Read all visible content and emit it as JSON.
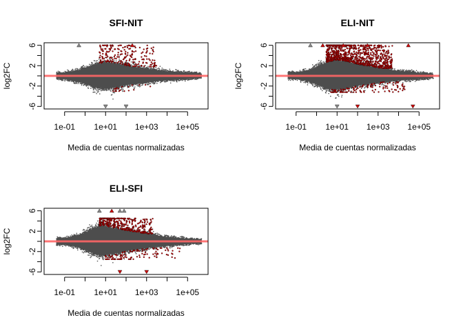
{
  "figure": {
    "colors": {
      "background": "#ffffff",
      "points_nonsignificant": "#4d4d4d",
      "points_significant": "#cc0000",
      "reference_line": "#ff6666",
      "axis": "#000000"
    }
  },
  "chart_data": [
    {
      "type": "scatter",
      "title": "SFI-NIT",
      "xlabel": "Media de cuentas normalizadas",
      "ylabel": "log2FC",
      "x_scale": "log10",
      "xlim": [
        0.01,
        1000000
      ],
      "ylim": [
        -6.5,
        6.5
      ],
      "x_ticks": [
        0.1,
        10,
        1000,
        100000
      ],
      "x_tick_labels": [
        "1e-01",
        "1e+01",
        "1e+03",
        "1e+05"
      ],
      "y_ticks": [
        -6,
        -2,
        2,
        6
      ],
      "y_tick_labels": [
        "-6",
        "-2",
        "2",
        "6"
      ],
      "reference_line_y": 0,
      "grid": false,
      "legend": "none",
      "cloud": {
        "upper_envelope": [
          [
            0.1,
            0.7
          ],
          [
            0.5,
            1.3
          ],
          [
            1,
            1.8
          ],
          [
            3,
            2.6
          ],
          [
            10,
            3.0
          ],
          [
            30,
            2.8
          ],
          [
            100,
            2.3
          ],
          [
            1000,
            1.6
          ],
          [
            10000,
            1.0
          ],
          [
            100000,
            0.7
          ],
          [
            1000000,
            0.4
          ]
        ],
        "lower_envelope": [
          [
            0.1,
            -0.7
          ],
          [
            0.5,
            -1.3
          ],
          [
            1,
            -1.8
          ],
          [
            3,
            -2.6
          ],
          [
            10,
            -2.9
          ],
          [
            30,
            -2.6
          ],
          [
            100,
            -2.1
          ],
          [
            1000,
            -1.5
          ],
          [
            10000,
            -1.0
          ],
          [
            100000,
            -0.7
          ],
          [
            1000000,
            -0.4
          ]
        ]
      },
      "significant_region": {
        "x_range": [
          5,
          3000
        ],
        "y_range": [
          1.8,
          6.0
        ],
        "count": 220
      },
      "significant_region_down": {
        "x_range": [
          20,
          2000
        ],
        "y_range": [
          -3.0,
          -1.5
        ],
        "count": 20
      },
      "outliers_up": [
        {
          "x": 0.5,
          "color": "gray"
        },
        {
          "x": 200,
          "color": "red"
        }
      ],
      "outliers_down": [
        {
          "x": 10,
          "color": "gray"
        },
        {
          "x": 100,
          "color": "gray"
        }
      ]
    },
    {
      "type": "scatter",
      "title": "ELI-NIT",
      "xlabel": "Media de cuentas normalizadas",
      "ylabel": "log2FC",
      "x_scale": "log10",
      "xlim": [
        0.01,
        1000000
      ],
      "ylim": [
        -6.5,
        6.5
      ],
      "x_ticks": [
        0.1,
        10,
        1000,
        100000
      ],
      "x_tick_labels": [
        "1e-01",
        "1e+01",
        "1e+03",
        "1e+05"
      ],
      "y_ticks": [
        -6,
        -2,
        2,
        6
      ],
      "y_tick_labels": [
        "-6",
        "-2",
        "2",
        "6"
      ],
      "reference_line_y": 0,
      "grid": false,
      "legend": "none",
      "cloud": {
        "upper_envelope": [
          [
            0.1,
            0.7
          ],
          [
            0.5,
            1.4
          ],
          [
            1,
            2.0
          ],
          [
            3,
            3.0
          ],
          [
            10,
            3.5
          ],
          [
            30,
            3.2
          ],
          [
            100,
            2.6
          ],
          [
            1000,
            1.8
          ],
          [
            10000,
            1.1
          ],
          [
            100000,
            0.7
          ],
          [
            1000000,
            0.4
          ]
        ],
        "lower_envelope": [
          [
            0.1,
            -0.7
          ],
          [
            0.5,
            -1.3
          ],
          [
            1,
            -1.9
          ],
          [
            3,
            -2.9
          ],
          [
            10,
            -3.1
          ],
          [
            30,
            -2.7
          ],
          [
            100,
            -2.2
          ],
          [
            1000,
            -1.5
          ],
          [
            10000,
            -1.0
          ],
          [
            100000,
            -0.7
          ],
          [
            1000000,
            -0.4
          ]
        ]
      },
      "significant_region": {
        "x_range": [
          3,
          5000
        ],
        "y_range": [
          1.5,
          6.0
        ],
        "count": 900
      },
      "significant_region_down": {
        "x_range": [
          5,
          20000
        ],
        "y_range": [
          -3.2,
          -1.2
        ],
        "count": 120
      },
      "outliers_up": [
        {
          "x": 0.5,
          "color": "gray"
        },
        {
          "x": 2,
          "color": "red"
        },
        {
          "x": 20,
          "color": "red"
        },
        {
          "x": 300,
          "color": "red"
        },
        {
          "x": 30000,
          "color": "red"
        }
      ],
      "outliers_down": [
        {
          "x": 10,
          "color": "gray"
        },
        {
          "x": 100,
          "color": "red"
        },
        {
          "x": 50000,
          "color": "red"
        }
      ]
    },
    {
      "type": "scatter",
      "title": "ELI-SFI",
      "xlabel": "Media de cuentas normalizadas",
      "ylabel": "log2FC",
      "x_scale": "log10",
      "xlim": [
        0.01,
        1000000
      ],
      "ylim": [
        -6.5,
        6.5
      ],
      "x_ticks": [
        0.1,
        10,
        1000,
        100000
      ],
      "x_tick_labels": [
        "1e-01",
        "1e+01",
        "1e+03",
        "1e+05"
      ],
      "y_ticks": [
        -6,
        -2,
        2,
        6
      ],
      "y_tick_labels": [
        "-6",
        "-2",
        "2",
        "6"
      ],
      "reference_line_y": 0,
      "grid": false,
      "legend": "none",
      "cloud": {
        "upper_envelope": [
          [
            0.1,
            0.7
          ],
          [
            0.5,
            1.4
          ],
          [
            1,
            2.0
          ],
          [
            3,
            3.0
          ],
          [
            7,
            3.6
          ],
          [
            15,
            3.2
          ],
          [
            100,
            2.4
          ],
          [
            1000,
            1.7
          ],
          [
            10000,
            1.0
          ],
          [
            100000,
            0.6
          ],
          [
            1000000,
            0.4
          ]
        ],
        "lower_envelope": [
          [
            0.1,
            -0.7
          ],
          [
            0.5,
            -1.3
          ],
          [
            1,
            -1.9
          ],
          [
            3,
            -2.9
          ],
          [
            7,
            -3.2
          ],
          [
            30,
            -2.7
          ],
          [
            100,
            -2.2
          ],
          [
            1000,
            -1.5
          ],
          [
            10000,
            -1.0
          ],
          [
            100000,
            -0.6
          ],
          [
            1000000,
            -0.4
          ]
        ]
      },
      "significant_region": {
        "x_range": [
          5,
          2000
        ],
        "y_range": [
          1.5,
          4.5
        ],
        "count": 350
      },
      "significant_region_down": {
        "x_range": [
          10,
          50000
        ],
        "y_range": [
          -3.5,
          -1.3
        ],
        "count": 110
      },
      "outliers_up": [
        {
          "x": 5,
          "color": "gray"
        },
        {
          "x": 20,
          "color": "red"
        },
        {
          "x": 50,
          "color": "gray"
        },
        {
          "x": 80,
          "color": "gray"
        }
      ],
      "outliers_down": [
        {
          "x": 50,
          "color": "red"
        },
        {
          "x": 1000,
          "color": "red"
        }
      ]
    }
  ]
}
